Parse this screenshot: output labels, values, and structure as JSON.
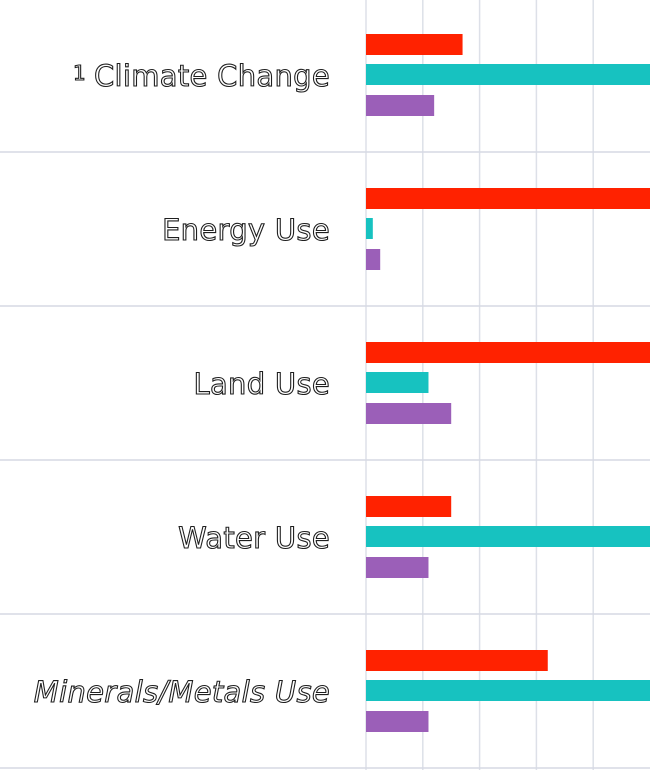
{
  "chart_data": {
    "type": "bar",
    "orientation": "horizontal",
    "title": "",
    "xlabel": "",
    "ylabel": "",
    "categories": [
      "Climate Change",
      "Energy Use",
      "Land Use",
      "Water Use",
      "Minerals/Metals Use"
    ],
    "category_label_marker": {
      "index": 0,
      "text": "1"
    },
    "italic_categories": [
      "Minerals/Metals Use"
    ],
    "xlim": [
      0,
      5
    ],
    "x_grid_step": 1,
    "grid": true,
    "legend": "none",
    "series": [
      {
        "color": "#ff2200",
        "values": [
          1.7,
          5,
          5,
          1.5,
          3.2
        ]
      },
      {
        "color": "#17c2c0",
        "values": [
          5,
          0.12,
          1.1,
          5,
          5
        ]
      },
      {
        "color": "#9b5fb8",
        "values": [
          1.2,
          0.25,
          1.5,
          1.1,
          1.1
        ]
      }
    ]
  }
}
